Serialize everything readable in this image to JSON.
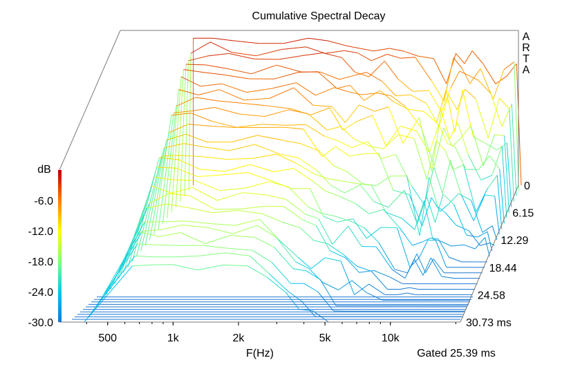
{
  "chart_data": {
    "type": "waterfall-3d",
    "title": "Cumulative Spectral Decay",
    "xlabel": "F(Hz)",
    "ylabel": "dB",
    "side_label": [
      "A",
      "R",
      "T",
      "A"
    ],
    "gated_label": "Gated 25.39 ms",
    "x_ticks": [
      {
        "label": "500",
        "value": 500
      },
      {
        "label": "1k",
        "value": 1000
      },
      {
        "label": "2k",
        "value": 2000
      },
      {
        "label": "5k",
        "value": 5000
      },
      {
        "label": "10k",
        "value": 10000
      }
    ],
    "y_ticks": [
      {
        "label": "-6.0",
        "value": -6
      },
      {
        "label": "-12.0",
        "value": -12
      },
      {
        "label": "-18.0",
        "value": -18
      },
      {
        "label": "-24.0",
        "value": -24
      },
      {
        "label": "-30.0",
        "value": -30
      }
    ],
    "time_ticks": [
      {
        "label": "0",
        "value": 0
      },
      {
        "label": "6.15",
        "value": 6.15
      },
      {
        "label": "12.29",
        "value": 12.29
      },
      {
        "label": "18.44",
        "value": 18.44
      },
      {
        "label": "24.58",
        "value": 24.58
      },
      {
        "label": "30.73 ms",
        "value": 30.73
      }
    ],
    "x_range_hz": [
      300,
      21000
    ],
    "y_range_db": [
      -30,
      0
    ],
    "time_range_ms": [
      0,
      30.73
    ],
    "slice_count": 26,
    "colormap": [
      "#1976d2",
      "#00c8f0",
      "#80ff80",
      "#ffff00",
      "#ff8000",
      "#c00000"
    ],
    "first_slice": {
      "freq_hz": [
        650,
        800,
        1000,
        1300,
        1700,
        2200,
        2700,
        3300,
        3800,
        4400,
        5200,
        6000,
        7000,
        8300,
        9500,
        10500,
        11500,
        12500,
        14000,
        16000,
        18000,
        20000
      ],
      "db": [
        -1.0,
        -1.0,
        -1.5,
        -2.0,
        -2.0,
        -1.0,
        -1.5,
        -2.5,
        -3.0,
        -3.5,
        -3.0,
        -3.5,
        -4.5,
        -5.0,
        -10.0,
        -4.0,
        -6.0,
        -3.5,
        -6.0,
        -10.0,
        -8.5,
        -6.0
      ]
    }
  }
}
